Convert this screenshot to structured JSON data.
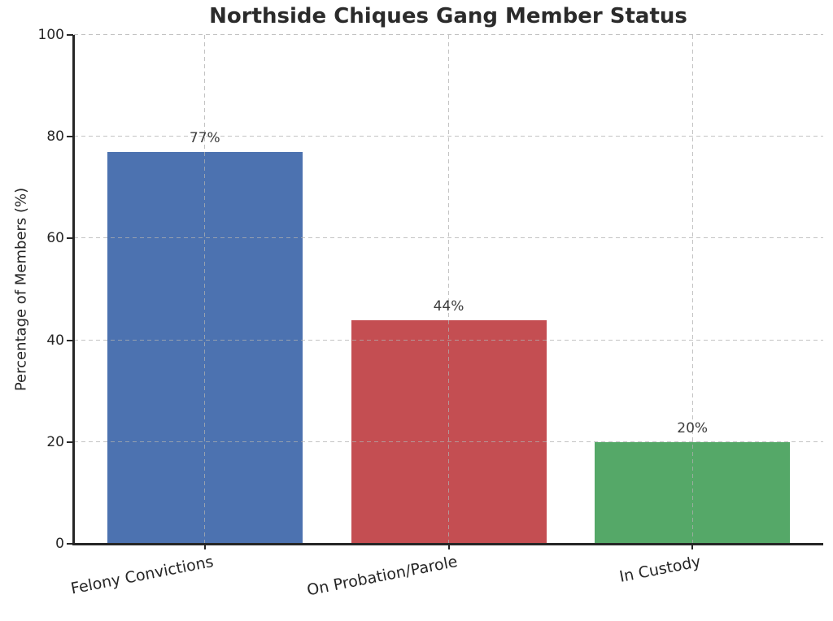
{
  "chart_data": {
    "type": "bar",
    "title": "Northside Chiques Gang Member Status",
    "xlabel": "",
    "ylabel": "Percentage of Members (%)",
    "categories": [
      "Felony Convictions",
      "On Probation/Parole",
      "In Custody"
    ],
    "values": [
      77,
      44,
      20
    ],
    "value_labels": [
      "77%",
      "44%",
      "20%"
    ],
    "bar_colors": [
      "#4C72B0",
      "#C44E52",
      "#55A868"
    ],
    "ylim": [
      0,
      100
    ],
    "yticks": [
      0,
      20,
      40,
      60,
      80,
      100
    ],
    "grid": "dashed gridlines on both axes, drawn over bars",
    "legend_position": "none",
    "text_color": "#262626"
  }
}
